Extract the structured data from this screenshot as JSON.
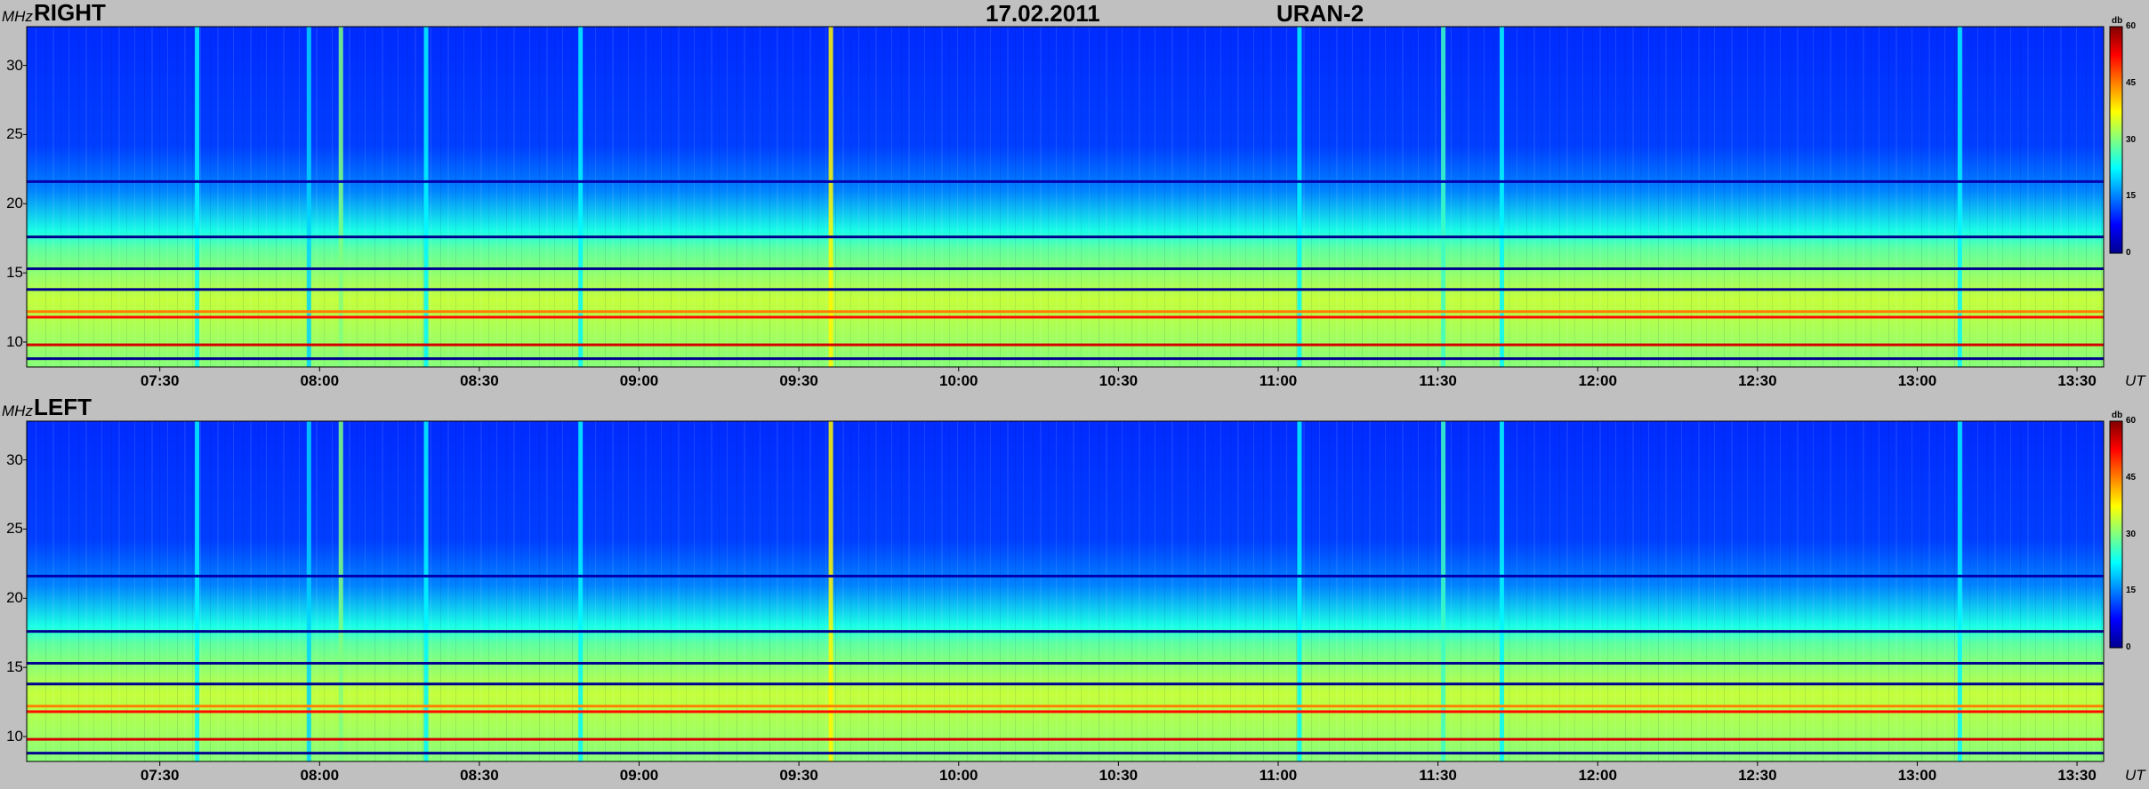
{
  "header": {
    "date": "17.02.2011",
    "instrument": "URAN-2"
  },
  "colors": {
    "background": "#c0c0c0",
    "colormap": "jet",
    "colormap_stops": [
      "#00008f",
      "#0000ff",
      "#0080ff",
      "#00ffff",
      "#80ff80",
      "#ffff00",
      "#ff8000",
      "#ff0000",
      "#800000"
    ]
  },
  "chart_data": [
    {
      "type": "heatmap",
      "panel_label": "RIGHT",
      "ylabel": "MHz",
      "xlabel": "UT",
      "y_ticks": [
        "10",
        "15",
        "20",
        "25",
        "30"
      ],
      "x_ticks": [
        "07:30",
        "08:00",
        "08:30",
        "09:00",
        "09:30",
        "10:00",
        "10:30",
        "11:00",
        "11:30",
        "12:00",
        "12:30",
        "13:00",
        "13:30"
      ],
      "xlim": [
        "07:05",
        "13:35"
      ],
      "ylim": [
        8.2,
        32.8
      ],
      "colorbar": {
        "unit": "db",
        "ticks": [
          "0",
          "15",
          "30",
          "45",
          "60"
        ],
        "range": [
          0,
          60
        ]
      },
      "features": {
        "background_level_db": [
          10,
          14
        ],
        "low_band_level_db": [
          28,
          34
        ],
        "low_band_top_mhz": 18,
        "narrowband_interference_mhz": [
          {
            "freq": 8.8,
            "level_db": 0
          },
          {
            "freq": 9.8,
            "level_db": 55
          },
          {
            "freq": 11.8,
            "level_db": 52
          },
          {
            "freq": 12.2,
            "level_db": 45
          },
          {
            "freq": 13.8,
            "level_db": 0
          },
          {
            "freq": 15.3,
            "level_db": 0
          },
          {
            "freq": 17.6,
            "level_db": 0
          },
          {
            "freq": 21.6,
            "level_db": 2
          }
        ],
        "broadband_bursts_ut": [
          {
            "time": "07:37",
            "level_db": 22
          },
          {
            "time": "07:58",
            "level_db": 20
          },
          {
            "time": "08:04",
            "level_db": 30
          },
          {
            "time": "08:20",
            "level_db": 22
          },
          {
            "time": "08:49",
            "level_db": 22
          },
          {
            "time": "09:36",
            "level_db": 38
          },
          {
            "time": "11:04",
            "level_db": 22
          },
          {
            "time": "11:31",
            "level_db": 26
          },
          {
            "time": "11:42",
            "level_db": 22
          },
          {
            "time": "13:08",
            "level_db": 22
          }
        ]
      }
    },
    {
      "type": "heatmap",
      "panel_label": "LEFT",
      "ylabel": "MHz",
      "xlabel": "UT",
      "y_ticks": [
        "10",
        "15",
        "20",
        "25",
        "30"
      ],
      "x_ticks": [
        "07:30",
        "08:00",
        "08:30",
        "09:00",
        "09:30",
        "10:00",
        "10:30",
        "11:00",
        "11:30",
        "12:00",
        "12:30",
        "13:00",
        "13:30"
      ],
      "xlim": [
        "07:05",
        "13:35"
      ],
      "ylim": [
        8.2,
        32.8
      ],
      "colorbar": {
        "unit": "db",
        "ticks": [
          "0",
          "15",
          "30",
          "45",
          "60"
        ],
        "range": [
          0,
          60
        ]
      },
      "features": {
        "background_level_db": [
          10,
          14
        ],
        "low_band_level_db": [
          28,
          34
        ],
        "low_band_top_mhz": 18,
        "narrowband_interference_mhz": [
          {
            "freq": 8.8,
            "level_db": 0
          },
          {
            "freq": 9.8,
            "level_db": 55
          },
          {
            "freq": 11.8,
            "level_db": 52
          },
          {
            "freq": 12.2,
            "level_db": 45
          },
          {
            "freq": 13.8,
            "level_db": 0
          },
          {
            "freq": 15.3,
            "level_db": 0
          },
          {
            "freq": 17.6,
            "level_db": 0
          },
          {
            "freq": 21.6,
            "level_db": 2
          }
        ],
        "broadband_bursts_ut": [
          {
            "time": "07:37",
            "level_db": 22
          },
          {
            "time": "07:58",
            "level_db": 20
          },
          {
            "time": "08:04",
            "level_db": 30
          },
          {
            "time": "08:20",
            "level_db": 22
          },
          {
            "time": "08:49",
            "level_db": 22
          },
          {
            "time": "09:36",
            "level_db": 38
          },
          {
            "time": "11:04",
            "level_db": 22
          },
          {
            "time": "11:31",
            "level_db": 26
          },
          {
            "time": "11:42",
            "level_db": 22
          },
          {
            "time": "13:08",
            "level_db": 22
          }
        ]
      }
    }
  ]
}
